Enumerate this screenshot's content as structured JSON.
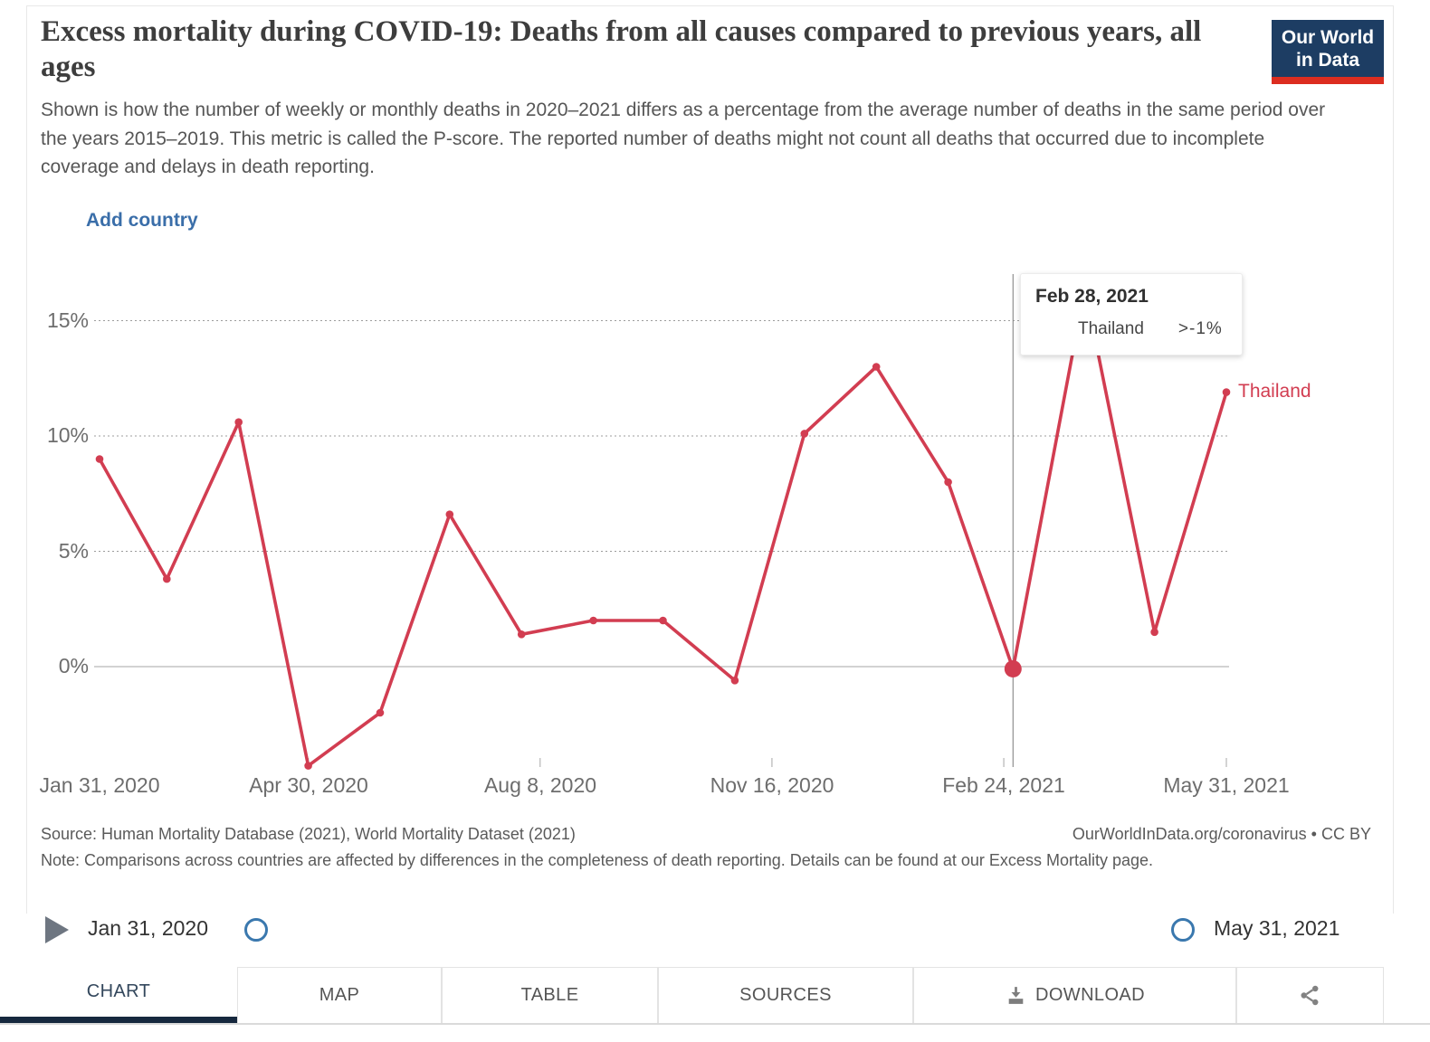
{
  "header": {
    "title": "Excess mortality during COVID-19: Deaths from all causes compared to previous years, all ages",
    "subtitle": "Shown is how the number of weekly or monthly deaths in 2020–2021 differs as a percentage from the average number of deaths in the same period over the years 2015–2019. This metric is called the P-score. The reported number of deaths might not count all deaths that occurred due to incomplete coverage and delays in death reporting.",
    "logo": {
      "line1": "Our World",
      "line2": "in Data"
    }
  },
  "controls": {
    "add_country_label": "Add country"
  },
  "chart_data": {
    "type": "line",
    "title": "Excess mortality during COVID-19: Deaths from all causes compared to previous years, all ages",
    "xlabel": "",
    "ylabel": "",
    "ylim": [
      -5,
      17
    ],
    "grid": "horizontal-dashed",
    "x_range": [
      "2020-01-31",
      "2021-05-31"
    ],
    "yticks": [
      {
        "value": 0,
        "label": "0%"
      },
      {
        "value": 5,
        "label": "5%"
      },
      {
        "value": 10,
        "label": "10%"
      },
      {
        "value": 15,
        "label": "15%"
      }
    ],
    "xticks": [
      {
        "date": "2020-01-31",
        "label": "Jan 31, 2020"
      },
      {
        "date": "2020-04-30",
        "label": "Apr 30, 2020"
      },
      {
        "date": "2020-08-08",
        "label": "Aug 8, 2020"
      },
      {
        "date": "2020-11-16",
        "label": "Nov 16, 2020"
      },
      {
        "date": "2021-02-24",
        "label": "Feb 24, 2021"
      },
      {
        "date": "2021-05-31",
        "label": "May 31, 2021"
      }
    ],
    "series": [
      {
        "name": "Thailand",
        "color": "#d23d51",
        "points": [
          {
            "date": "2020-01-31",
            "value": 9
          },
          {
            "date": "2020-02-29",
            "value": 3.8
          },
          {
            "date": "2020-03-31",
            "value": 10.6
          },
          {
            "date": "2020-04-30",
            "value": -4.3
          },
          {
            "date": "2020-05-31",
            "value": -2
          },
          {
            "date": "2020-06-30",
            "value": 6.6
          },
          {
            "date": "2020-07-31",
            "value": 1.4
          },
          {
            "date": "2020-08-31",
            "value": 2
          },
          {
            "date": "2020-09-30",
            "value": 2
          },
          {
            "date": "2020-10-31",
            "value": -0.6
          },
          {
            "date": "2020-11-30",
            "value": 10.1
          },
          {
            "date": "2020-12-31",
            "value": 13
          },
          {
            "date": "2021-01-31",
            "value": 8
          },
          {
            "date": "2021-02-28",
            "value": -0.1
          },
          {
            "date": "2021-03-31",
            "value": 16.4
          },
          {
            "date": "2021-04-30",
            "value": 1.5
          },
          {
            "date": "2021-05-31",
            "value": 11.9
          }
        ]
      }
    ],
    "highlight": {
      "date": "2021-02-28",
      "series": "Thailand",
      "value_label": ">-1%"
    }
  },
  "tooltip": {
    "date": "Feb 28, 2021",
    "rows": [
      {
        "entity": "Thailand",
        "value": ">-1%"
      }
    ]
  },
  "footer": {
    "source": "Source: Human Mortality Database (2021), World Mortality Dataset (2021)",
    "attribution": "OurWorldInData.org/coronavirus • CC BY",
    "note": "Note: Comparisons across countries are affected by differences in the completeness of death reporting. Details can be found at our Excess Mortality page."
  },
  "timeline": {
    "start": "Jan 31, 2020",
    "end": "May 31, 2021"
  },
  "tabs": {
    "chart": "CHART",
    "map": "MAP",
    "table": "TABLE",
    "sources": "SOURCES",
    "download": "DOWNLOAD"
  },
  "colors": {
    "logo_bg": "#1d3d63",
    "logo_red": "#dc2d20",
    "accent_blue": "#3a6ea9",
    "tab_underline": "#16283e"
  }
}
